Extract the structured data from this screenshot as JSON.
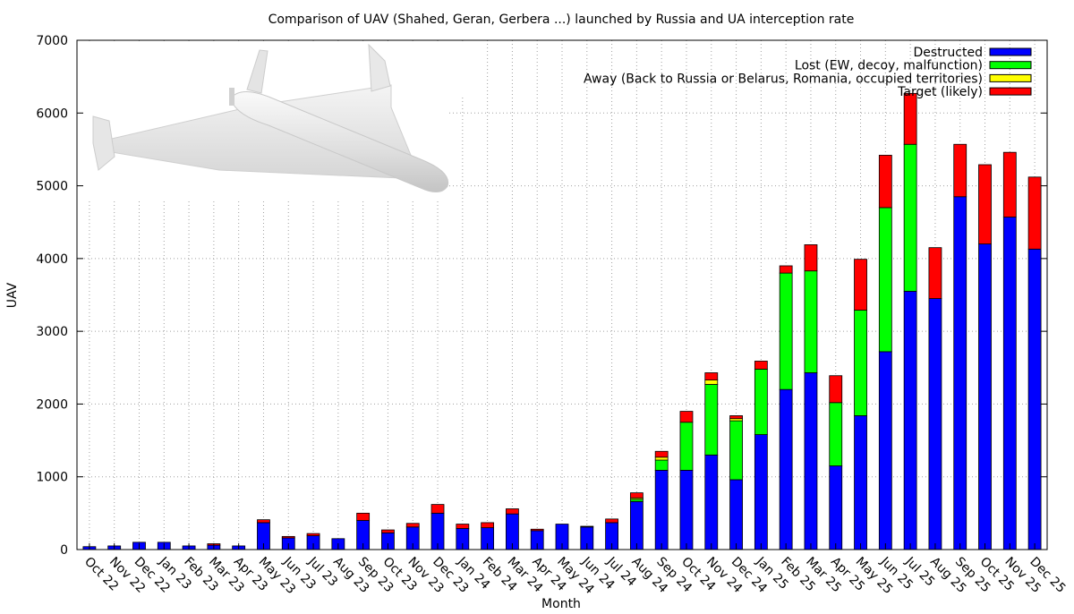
{
  "chart_data": {
    "type": "bar",
    "stacked": true,
    "title": "Comparison of UAV (Shahed, Geran, Gerbera ...) launched by Russia and UA interception rate",
    "xlabel": "Month",
    "ylabel": "UAV",
    "ylim": [
      0,
      7000
    ],
    "yticks": [
      "0",
      "1000",
      "2000",
      "3000",
      "4000",
      "5000",
      "6000",
      "7000"
    ],
    "grid": true,
    "legend_position": "top-right",
    "categories": [
      "Oct 22",
      "Nov 22",
      "Dec 22",
      "Jan 23",
      "Feb 23",
      "Mar 23",
      "Apr 23",
      "May 23",
      "Jun 23",
      "Jul 23",
      "Aug 23",
      "Sep 23",
      "Oct 23",
      "Nov 23",
      "Dec 23",
      "Jan 24",
      "Feb 24",
      "Mar 24",
      "Apr 24",
      "May 24",
      "Jun 24",
      "Jul 24",
      "Aug 24",
      "Sep 24",
      "Oct 24",
      "Nov 24",
      "Dec 24",
      "Jan 25",
      "Feb 25",
      "Mar 25",
      "Apr 25",
      "May 25",
      "Jun 25",
      "Jul 25",
      "Aug 25",
      "Sep 25",
      "Oct 25",
      "Nov 25",
      "Dec 25"
    ],
    "series": [
      {
        "name": "Destructed",
        "color": "#0000ff",
        "values": [
          40,
          50,
          100,
          100,
          50,
          60,
          50,
          370,
          160,
          190,
          150,
          400,
          230,
          310,
          500,
          290,
          300,
          490,
          260,
          350,
          310,
          370,
          660,
          1090,
          1090,
          1300,
          960,
          1580,
          2200,
          2430,
          1150,
          1840,
          2720,
          3550,
          3450,
          4850,
          4200,
          4570,
          4130
        ]
      },
      {
        "name": "Lost (EW, decoy, malfunction)",
        "color": "#00ff00",
        "values": [
          0,
          0,
          0,
          0,
          0,
          0,
          0,
          0,
          0,
          0,
          0,
          0,
          0,
          0,
          0,
          0,
          0,
          0,
          0,
          0,
          0,
          0,
          30,
          140,
          660,
          970,
          810,
          900,
          1600,
          1400,
          870,
          1450,
          1980,
          2020,
          0,
          0,
          0,
          0,
          0
        ]
      },
      {
        "name": "Away (Back to Russia or Belarus, Romania, occupied territories)",
        "color": "#ffff00",
        "values": [
          0,
          0,
          0,
          0,
          0,
          0,
          0,
          0,
          0,
          0,
          0,
          0,
          0,
          0,
          0,
          0,
          0,
          0,
          0,
          0,
          0,
          0,
          20,
          40,
          0,
          60,
          30,
          0,
          0,
          0,
          0,
          0,
          0,
          0,
          0,
          0,
          0,
          0,
          0
        ]
      },
      {
        "name": "Target (likely)",
        "color": "#ff0000",
        "values": [
          0,
          0,
          0,
          0,
          0,
          20,
          0,
          40,
          20,
          30,
          0,
          100,
          40,
          50,
          120,
          60,
          70,
          70,
          20,
          0,
          10,
          50,
          70,
          80,
          150,
          100,
          40,
          110,
          100,
          360,
          370,
          700,
          720,
          700,
          700,
          720,
          1090,
          890,
          990
        ]
      }
    ]
  }
}
